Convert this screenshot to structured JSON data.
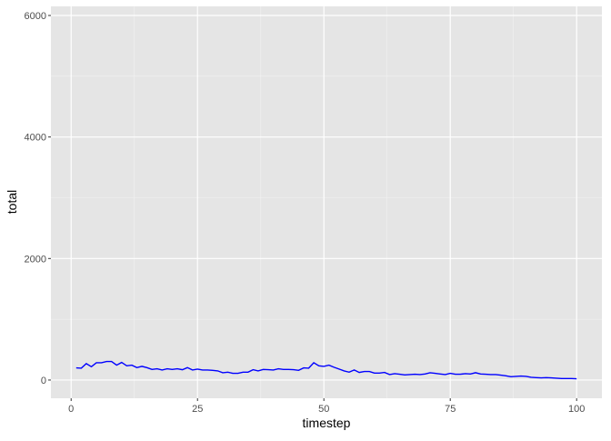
{
  "chart_data": {
    "type": "line",
    "title": "",
    "xlabel": "timestep",
    "ylabel": "total",
    "xlim": [
      -4,
      105
    ],
    "ylim": [
      -300,
      6150
    ],
    "x_ticks": [
      0,
      25,
      50,
      75,
      100
    ],
    "y_ticks": [
      0,
      2000,
      4000,
      6000
    ],
    "x_tick_labels": [
      "0",
      "25",
      "50",
      "75",
      "100"
    ],
    "y_tick_labels": [
      "0",
      "2000",
      "4000",
      "6000"
    ],
    "grid": true,
    "line_color": "#0000FF",
    "panel_color": "#E5E5E5",
    "series": [
      {
        "x": [
          1,
          2,
          3,
          4,
          5,
          6,
          7,
          8,
          9,
          10,
          11,
          12,
          13,
          14,
          15,
          16,
          17,
          18,
          19,
          20,
          21,
          22,
          23,
          24,
          25,
          26,
          27,
          28,
          29,
          30,
          31,
          32,
          33,
          34,
          35,
          36,
          37,
          38,
          39,
          40,
          41,
          42,
          43,
          44,
          45,
          46,
          47,
          48,
          49,
          50,
          51,
          52,
          53,
          54,
          55,
          56,
          57,
          58,
          59,
          60,
          61,
          62,
          63,
          64,
          65,
          66,
          67,
          68,
          69,
          70,
          71,
          72,
          73,
          74,
          75,
          76,
          77,
          78,
          79,
          80,
          81,
          82,
          83,
          84,
          85,
          86,
          87,
          88,
          89,
          90,
          91,
          92,
          93,
          94,
          95,
          96,
          97,
          98,
          99,
          100
        ],
        "values": [
          200,
          195,
          270,
          220,
          285,
          285,
          305,
          305,
          245,
          290,
          235,
          245,
          205,
          225,
          205,
          175,
          185,
          165,
          185,
          175,
          185,
          170,
          205,
          165,
          180,
          165,
          165,
          160,
          150,
          120,
          130,
          110,
          110,
          130,
          130,
          170,
          150,
          175,
          170,
          165,
          185,
          175,
          175,
          170,
          160,
          200,
          195,
          285,
          235,
          225,
          245,
          210,
          180,
          150,
          130,
          165,
          125,
          140,
          140,
          115,
          115,
          125,
          90,
          105,
          95,
          85,
          90,
          95,
          90,
          100,
          120,
          110,
          100,
          90,
          110,
          95,
          95,
          105,
          100,
          120,
          100,
          95,
          90,
          90,
          80,
          70,
          55,
          60,
          65,
          60,
          45,
          40,
          35,
          40,
          35,
          30,
          25,
          25,
          25,
          20
        ]
      }
    ]
  }
}
